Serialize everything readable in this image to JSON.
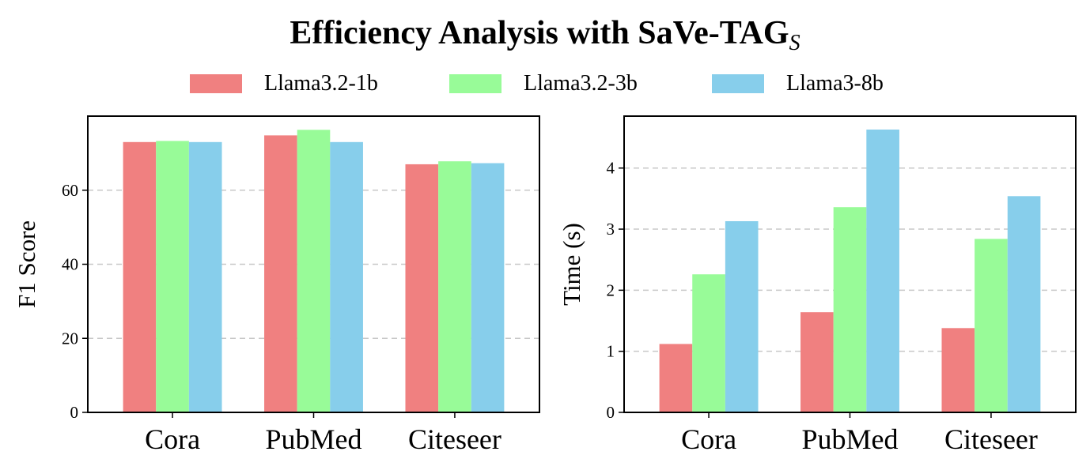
{
  "title_main": "Efficiency Analysis with SaVe-TAG",
  "title_sub": "S",
  "legend": [
    {
      "label": "Llama3.2-1b",
      "color": "#f08080"
    },
    {
      "label": "Llama3.2-3b",
      "color": "#98fb98"
    },
    {
      "label": "Llama3-8b",
      "color": "#87ceeb"
    }
  ],
  "chart_data": [
    {
      "type": "bar",
      "categories": [
        "Cora",
        "PubMed",
        "Citeseer"
      ],
      "series": [
        {
          "name": "Llama3.2-1b",
          "values": [
            73.0,
            74.8,
            67.0
          ]
        },
        {
          "name": "Llama3.2-3b",
          "values": [
            73.3,
            76.3,
            67.8
          ]
        },
        {
          "name": "Llama3-8b",
          "values": [
            73.0,
            73.0,
            67.3
          ]
        }
      ],
      "title": "",
      "xlabel": "",
      "ylabel": "F1 Score",
      "ylim": [
        0,
        80
      ],
      "yticks": [
        0,
        20,
        40,
        60
      ],
      "grid": "y-dashed",
      "colors": [
        "#f08080",
        "#98fb98",
        "#87ceeb"
      ]
    },
    {
      "type": "bar",
      "categories": [
        "Cora",
        "PubMed",
        "Citeseer"
      ],
      "series": [
        {
          "name": "Llama3.2-1b",
          "values": [
            1.12,
            1.64,
            1.38
          ]
        },
        {
          "name": "Llama3.2-3b",
          "values": [
            2.26,
            3.36,
            2.84
          ]
        },
        {
          "name": "Llama3-8b",
          "values": [
            3.13,
            4.63,
            3.54
          ]
        }
      ],
      "title": "",
      "xlabel": "",
      "ylabel": "Time (s)",
      "ylim": [
        0,
        4.85
      ],
      "yticks": [
        0,
        1,
        2,
        3,
        4
      ],
      "grid": "y-dashed",
      "colors": [
        "#f08080",
        "#98fb98",
        "#87ceeb"
      ]
    }
  ]
}
